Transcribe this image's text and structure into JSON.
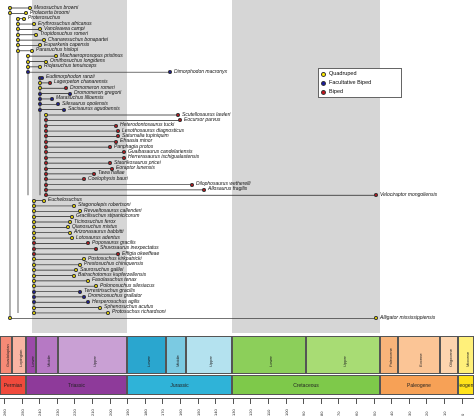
{
  "legend": {
    "items": [
      {
        "label": "Quadruped",
        "color": "#ffeb00"
      },
      {
        "label": "Facultative Biped",
        "color": "#1a1aa0"
      },
      {
        "label": "Biped",
        "color": "#c4151c"
      }
    ]
  },
  "colors": {
    "yellow": "#ffeb00",
    "blue": "#1a1aa0",
    "red": "#c4151c",
    "band": "#d6d6d6"
  },
  "taxa": [
    {
      "label": "Mesosuchus browni",
      "state": "y"
    },
    {
      "label": "Prolacerta broomi",
      "state": "y"
    },
    {
      "label": "Proterosuchus",
      "state": "y"
    },
    {
      "label": "Erythrosuchus africanus",
      "state": "y"
    },
    {
      "label": "Vancleavea campi",
      "state": "y"
    },
    {
      "label": "Tropidosuchus romeri",
      "state": "y"
    },
    {
      "label": "Chanaresuchus bonapartei",
      "state": "y"
    },
    {
      "label": "Euparkeria capensis",
      "state": "y"
    },
    {
      "label": "Parasuchus hislopi",
      "state": "y"
    },
    {
      "label": "Machaeroprosopus pristinus",
      "state": "y"
    },
    {
      "label": "Ornithosuchus longidens",
      "state": "y"
    },
    {
      "label": "Riojasuchus tenuisceps",
      "state": "y"
    },
    {
      "label": "Dimorphodon macronyx",
      "state": "b"
    },
    {
      "label": "Eudimorphodon ranzii",
      "state": "b"
    },
    {
      "label": "Lagerpeton chanarensis",
      "state": "r"
    },
    {
      "label": "Dromomeron romeri",
      "state": "r"
    },
    {
      "label": "Dromomeron gregorii",
      "state": "b"
    },
    {
      "label": "Marasuchus lilloensis",
      "state": "b"
    },
    {
      "label": "Silesaurus opolensis",
      "state": "b"
    },
    {
      "label": "Sacisaurus agudoensis",
      "state": "b"
    },
    {
      "label": "Scutellosaurus lawleri",
      "state": "r"
    },
    {
      "label": "Eocursor parvus",
      "state": "r"
    },
    {
      "label": "Heterodontosaurus tucki",
      "state": "r"
    },
    {
      "label": "Lesothosaurus diagnosticus",
      "state": "r"
    },
    {
      "label": "Saturnalia tupiniquim",
      "state": "r"
    },
    {
      "label": "Efraasia minor",
      "state": "r"
    },
    {
      "label": "Panphagia protos",
      "state": "r"
    },
    {
      "label": "Guaibasaurus candelariensis",
      "state": "r"
    },
    {
      "label": "Herrerasaurus ischigualastensis",
      "state": "r"
    },
    {
      "label": "Staurikosaurus pricei",
      "state": "r"
    },
    {
      "label": "Eoraptor lunensis",
      "state": "r"
    },
    {
      "label": "Tawa hallae",
      "state": "r"
    },
    {
      "label": "Coelophysis bauri",
      "state": "r"
    },
    {
      "label": "Dilophosaurus wetherelli",
      "state": "r"
    },
    {
      "label": "Allosaurus fragilis",
      "state": "r"
    },
    {
      "label": "Velociraptor mongoliensis",
      "state": "r"
    },
    {
      "label": "Euchelosuchus",
      "state": "y"
    },
    {
      "label": "Stagonolepis robertsoni",
      "state": "y"
    },
    {
      "label": "Revueltosaurus callenderi",
      "state": "y"
    },
    {
      "label": "Gracilisuchus stipanicicorum",
      "state": "y"
    },
    {
      "label": "Ticinosuchus ferox",
      "state": "y"
    },
    {
      "label": "Qianosuchus mixtus",
      "state": "y"
    },
    {
      "label": "Arizonasaurus babbitti",
      "state": "y"
    },
    {
      "label": "Lotosaurus adentus",
      "state": "y"
    },
    {
      "label": "Poposaurus gracilis",
      "state": "r"
    },
    {
      "label": "Shuvosaurus inexpectatus",
      "state": "r"
    },
    {
      "label": "Effigia okeeffeae",
      "state": "r"
    },
    {
      "label": "Postosuchus kirkpatricki",
      "state": "y"
    },
    {
      "label": "Prestosuchus chiniquensis",
      "state": "y"
    },
    {
      "label": "Saurosuchus galilei",
      "state": "y"
    },
    {
      "label": "Batrachotomus kupferzellensis",
      "state": "y"
    },
    {
      "label": "Fasolasuchus tenax",
      "state": "y"
    },
    {
      "label": "Polonosuchus silesiacus",
      "state": "y"
    },
    {
      "label": "Terrestrisuchus gracilis",
      "state": "b"
    },
    {
      "label": "Dromicosuchus grallator",
      "state": "b"
    },
    {
      "label": "Hesperosuchus agilis",
      "state": "b"
    },
    {
      "label": "Sphenosuchus acutus",
      "state": "y"
    },
    {
      "label": "Protosuchus richardsoni",
      "state": "y"
    },
    {
      "label": "Alligator mississippiensis",
      "state": "y"
    }
  ],
  "timescale": {
    "periods": [
      {
        "label": "Permian",
        "color": "#f04a3c"
      },
      {
        "label": "Triassic",
        "color": "#8e3a9a"
      },
      {
        "label": "Jurassic",
        "color": "#2fb3d8"
      },
      {
        "label": "Cretaceous",
        "color": "#7ec94a"
      },
      {
        "label": "Paleogene",
        "color": "#f7a156"
      },
      {
        "label": "Neogene",
        "color": "#ffe21a"
      }
    ],
    "epochs": [
      {
        "label": "Guadalupian",
        "color": "#f58a76"
      },
      {
        "label": "Lopingian",
        "color": "#f9b5a3"
      },
      {
        "label": "Lower",
        "color": "#9c4aa9"
      },
      {
        "label": "Middle",
        "color": "#b679c4"
      },
      {
        "label": "Upper",
        "color": "#c9a0d4"
      },
      {
        "label": "Lower",
        "color": "#2aa6cf"
      },
      {
        "label": "Middle",
        "color": "#7bcae2"
      },
      {
        "label": "Upper",
        "color": "#b4e2ef"
      },
      {
        "label": "Lower",
        "color": "#8ccf5a"
      },
      {
        "label": "Upper",
        "color": "#a8dc74"
      },
      {
        "label": "Paleocene",
        "color": "#f8b47a"
      },
      {
        "label": "Eocene",
        "color": "#fbc596"
      },
      {
        "label": "Oligocene",
        "color": "#fdd4ae"
      },
      {
        "label": "Miocene",
        "color": "#fff07a"
      }
    ],
    "ticks": [
      "260",
      "250",
      "240",
      "230",
      "220",
      "210",
      "200",
      "190",
      "180",
      "170",
      "160",
      "150",
      "140",
      "130",
      "120",
      "110",
      "100",
      "90",
      "80",
      "70",
      "60",
      "50",
      "40",
      "30",
      "20",
      "10",
      "0"
    ]
  }
}
